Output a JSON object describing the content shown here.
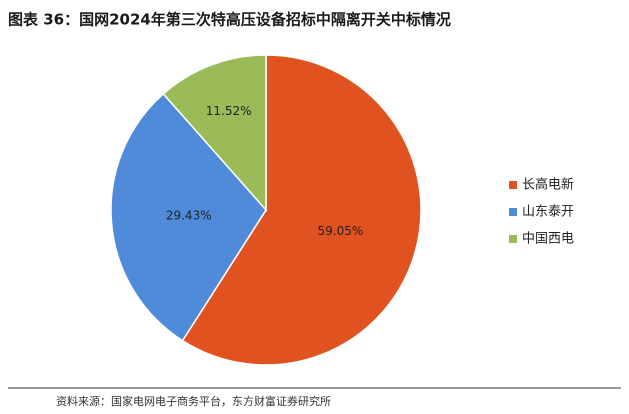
{
  "chart_data": {
    "type": "pie",
    "title": "图表 36：国网2024年第三次特高压设备招标中隔离开关中标情况",
    "categories": [
      "长高电新",
      "山东泰开",
      "中国西电"
    ],
    "values": [
      59.05,
      29.43,
      11.52
    ],
    "value_labels": [
      "59.05%",
      "29.43%",
      "11.52%"
    ],
    "colors": [
      "#E0521F",
      "#4F8BD8",
      "#9BBB59"
    ],
    "legend": "right",
    "source": "资料来源：国家电网电子商务平台，东方财富证券研究所"
  }
}
